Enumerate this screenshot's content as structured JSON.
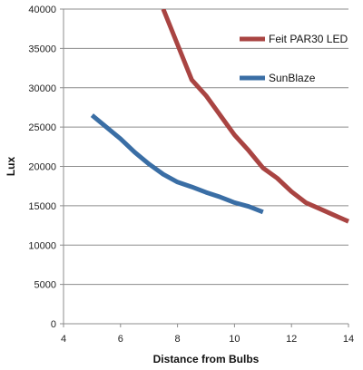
{
  "chart_data": {
    "type": "line",
    "title": "",
    "xlabel": "Distance from Bulbs",
    "ylabel": "Lux",
    "xlim": [
      4,
      14
    ],
    "ylim": [
      0,
      40000
    ],
    "xticks": [
      4,
      6,
      8,
      10,
      12,
      14
    ],
    "yticks": [
      0,
      5000,
      10000,
      15000,
      20000,
      25000,
      30000,
      35000,
      40000
    ],
    "grid": "horizontal",
    "legend": "top-right",
    "series": [
      {
        "name": "Feit PAR30 LED",
        "color": "#a94442",
        "points": [
          [
            7.5,
            40000
          ],
          [
            8.0,
            35500
          ],
          [
            8.5,
            31000
          ],
          [
            9.0,
            29000
          ],
          [
            9.5,
            26500
          ],
          [
            10.0,
            24000
          ],
          [
            10.5,
            22000
          ],
          [
            11.0,
            19800
          ],
          [
            11.5,
            18500
          ],
          [
            12.0,
            16800
          ],
          [
            12.5,
            15400
          ],
          [
            13.0,
            14600
          ],
          [
            13.5,
            13800
          ],
          [
            14.0,
            13000
          ]
        ]
      },
      {
        "name": "SunBlaze",
        "color": "#3a6ea5",
        "points": [
          [
            5.0,
            26500
          ],
          [
            5.5,
            25000
          ],
          [
            6.0,
            23500
          ],
          [
            6.5,
            21800
          ],
          [
            7.0,
            20300
          ],
          [
            7.5,
            19000
          ],
          [
            8.0,
            18000
          ],
          [
            8.5,
            17400
          ],
          [
            9.0,
            16700
          ],
          [
            9.5,
            16100
          ],
          [
            10.0,
            15400
          ],
          [
            10.5,
            14900
          ],
          [
            11.0,
            14200
          ]
        ]
      }
    ]
  }
}
